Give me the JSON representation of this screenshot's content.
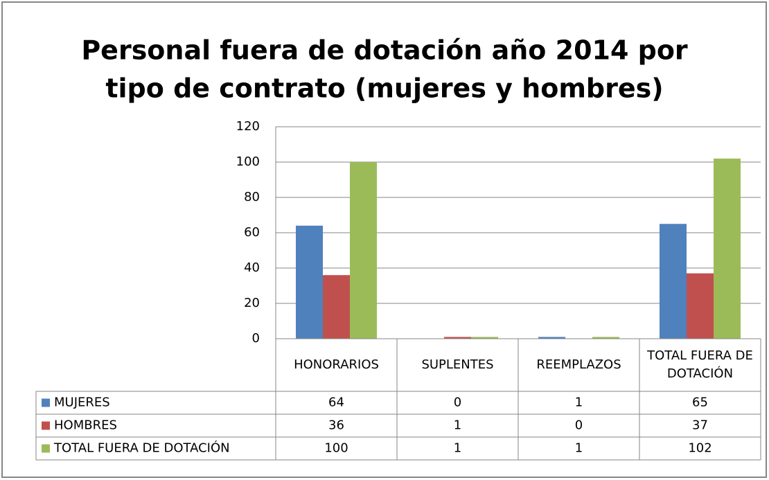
{
  "chart_data": {
    "type": "bar",
    "title_lines": [
      "Personal fuera de dotación año 2014 por",
      "tipo de contrato (mujeres y hombres)"
    ],
    "categories": [
      "HONORARIOS",
      "SUPLENTES",
      "REEMPLAZOS",
      "TOTAL FUERA DE DOTACIÓN"
    ],
    "series": [
      {
        "name": "MUJERES",
        "color": "#4f81bd",
        "values": [
          64,
          0,
          1,
          65
        ]
      },
      {
        "name": "HOMBRES",
        "color": "#c0504d",
        "values": [
          36,
          1,
          0,
          37
        ]
      },
      {
        "name": "TOTAL FUERA DE DOTACIÓN",
        "color": "#9bbb59",
        "values": [
          100,
          1,
          1,
          102
        ]
      }
    ],
    "ylim": [
      0,
      120
    ],
    "yticks": [
      0,
      20,
      40,
      60,
      80,
      100,
      120
    ],
    "grid": true,
    "data_table": true
  }
}
